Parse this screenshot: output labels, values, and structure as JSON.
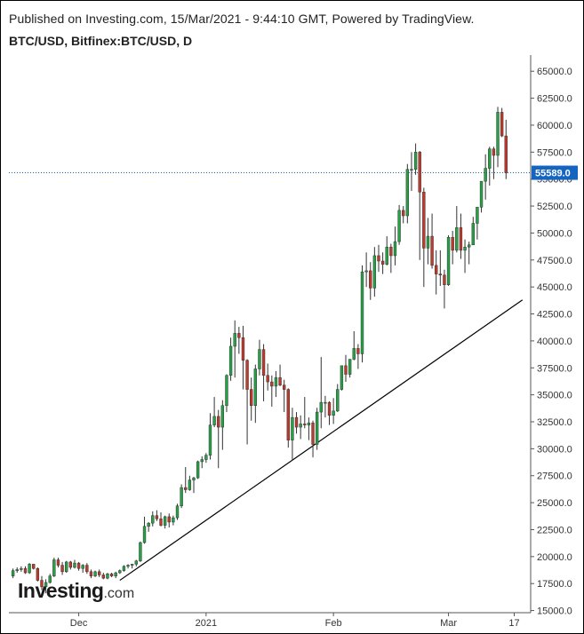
{
  "header": {
    "published": "Published on Investing.com, 15/Mar/2021 - 9:44:10 GMT, Powered by TradingView.",
    "symbol": "BTC/USD, Bitfinex:BTC/USD, D"
  },
  "logo": {
    "name": "Investing",
    "suffix": ".com"
  },
  "chart_data": {
    "type": "candlestick",
    "title": "BTC/USD, Bitfinex:BTC/USD, D",
    "ylim": [
      14800,
      66500
    ],
    "y_ticks": [
      15000,
      17500,
      20000,
      22500,
      25000,
      27500,
      30000,
      32500,
      35000,
      37500,
      40000,
      42500,
      45000,
      47500,
      50000,
      52500,
      55000,
      57500,
      60000,
      62500,
      65000
    ],
    "y_tick_labels": [
      "15000.0",
      "17500.0",
      "20000.0",
      "22500.0",
      "25000.0",
      "27500.0",
      "30000.0",
      "32500.0",
      "35000.0",
      "37500.0",
      "40000.0",
      "42500.0",
      "45000.0",
      "47500.0",
      "50000.0",
      "52500.0",
      "55000.0",
      "57500.0",
      "60000.0",
      "62500.0",
      "65000.0"
    ],
    "x_range": [
      "2020-11-14",
      "2021-03-21"
    ],
    "x_ticks": [
      {
        "date": "2020-12-01",
        "label": "Dec"
      },
      {
        "date": "2021-01-01",
        "label": "2021"
      },
      {
        "date": "2021-02-01",
        "label": "Feb"
      },
      {
        "date": "2021-03-01",
        "label": "Mar"
      },
      {
        "date": "2021-03-17",
        "label": "17"
      }
    ],
    "last_price": 55589.0,
    "last_price_label": "55589.0",
    "colors": {
      "up": "#26a246",
      "down": "#c0392b",
      "last_tag": "#1565c0",
      "trendline": "#000000"
    },
    "trendline": {
      "start": {
        "date": "2020-12-11",
        "price": 17800
      },
      "end": {
        "date": "2021-03-19",
        "price": 43800
      }
    },
    "candles": [
      {
        "date": "2020-11-15",
        "open": 18200,
        "high": 18900,
        "low": 18000,
        "close": 18700
      },
      {
        "date": "2020-11-16",
        "open": 18700,
        "high": 19000,
        "low": 18500,
        "close": 18800
      },
      {
        "date": "2020-11-17",
        "open": 18800,
        "high": 19100,
        "low": 18600,
        "close": 18900
      },
      {
        "date": "2020-11-18",
        "open": 18900,
        "high": 19100,
        "low": 18400,
        "close": 18500
      },
      {
        "date": "2020-11-19",
        "open": 18500,
        "high": 19400,
        "low": 18400,
        "close": 19300
      },
      {
        "date": "2020-11-20",
        "open": 19300,
        "high": 19300,
        "low": 18800,
        "close": 18900
      },
      {
        "date": "2020-11-21",
        "open": 18900,
        "high": 19000,
        "low": 17700,
        "close": 17800
      },
      {
        "date": "2020-11-22",
        "open": 17800,
        "high": 18200,
        "low": 16900,
        "close": 17200
      },
      {
        "date": "2020-11-23",
        "open": 17200,
        "high": 17900,
        "low": 16600,
        "close": 17600
      },
      {
        "date": "2020-11-24",
        "open": 17600,
        "high": 18400,
        "low": 17500,
        "close": 18200
      },
      {
        "date": "2020-11-25",
        "open": 18200,
        "high": 19900,
        "low": 18100,
        "close": 19700
      },
      {
        "date": "2020-11-26",
        "open": 19700,
        "high": 19900,
        "low": 19000,
        "close": 19200
      },
      {
        "date": "2020-11-27",
        "open": 19200,
        "high": 19500,
        "low": 18300,
        "close": 18600
      },
      {
        "date": "2020-11-28",
        "open": 18600,
        "high": 19600,
        "low": 18500,
        "close": 19500
      },
      {
        "date": "2020-11-29",
        "open": 19500,
        "high": 19600,
        "low": 18800,
        "close": 19000
      },
      {
        "date": "2020-11-30",
        "open": 19000,
        "high": 19700,
        "low": 18900,
        "close": 19400
      },
      {
        "date": "2020-12-01",
        "open": 19400,
        "high": 19500,
        "low": 18700,
        "close": 18900
      },
      {
        "date": "2020-12-02",
        "open": 18900,
        "high": 19300,
        "low": 18500,
        "close": 19200
      },
      {
        "date": "2020-12-03",
        "open": 19200,
        "high": 19400,
        "low": 18400,
        "close": 18600
      },
      {
        "date": "2020-12-04",
        "open": 18600,
        "high": 18800,
        "low": 18000,
        "close": 18200
      },
      {
        "date": "2020-12-05",
        "open": 18200,
        "high": 18700,
        "low": 18100,
        "close": 18600
      },
      {
        "date": "2020-12-06",
        "open": 18600,
        "high": 18800,
        "low": 18100,
        "close": 18300
      },
      {
        "date": "2020-12-07",
        "open": 18300,
        "high": 18500,
        "low": 17900,
        "close": 18000
      },
      {
        "date": "2020-12-08",
        "open": 18000,
        "high": 18500,
        "low": 17900,
        "close": 18400
      },
      {
        "date": "2020-12-09",
        "open": 18400,
        "high": 18500,
        "low": 18100,
        "close": 18200
      },
      {
        "date": "2020-12-10",
        "open": 18200,
        "high": 18600,
        "low": 18000,
        "close": 18500
      },
      {
        "date": "2020-12-11",
        "open": 18500,
        "high": 18800,
        "low": 18400,
        "close": 18700
      },
      {
        "date": "2020-12-12",
        "open": 18700,
        "high": 19200,
        "low": 18600,
        "close": 19100
      },
      {
        "date": "2020-12-13",
        "open": 19100,
        "high": 19300,
        "low": 18900,
        "close": 19200
      },
      {
        "date": "2020-12-14",
        "open": 19200,
        "high": 19300,
        "low": 18900,
        "close": 19300
      },
      {
        "date": "2020-12-15",
        "open": 19300,
        "high": 19700,
        "low": 19100,
        "close": 19600
      },
      {
        "date": "2020-12-16",
        "open": 19600,
        "high": 21400,
        "low": 19500,
        "close": 21300
      },
      {
        "date": "2020-12-17",
        "open": 21300,
        "high": 23700,
        "low": 21200,
        "close": 22800
      },
      {
        "date": "2020-12-18",
        "open": 22800,
        "high": 23200,
        "low": 22300,
        "close": 23100
      },
      {
        "date": "2020-12-19",
        "open": 23100,
        "high": 24200,
        "low": 22800,
        "close": 23800
      },
      {
        "date": "2020-12-20",
        "open": 23800,
        "high": 24300,
        "low": 23300,
        "close": 23500
      },
      {
        "date": "2020-12-21",
        "open": 23500,
        "high": 24100,
        "low": 22800,
        "close": 22900
      },
      {
        "date": "2020-12-22",
        "open": 22900,
        "high": 23800,
        "low": 22600,
        "close": 23700
      },
      {
        "date": "2020-12-23",
        "open": 23700,
        "high": 24000,
        "low": 22700,
        "close": 23200
      },
      {
        "date": "2020-12-24",
        "open": 23200,
        "high": 23800,
        "low": 22900,
        "close": 23600
      },
      {
        "date": "2020-12-25",
        "open": 23600,
        "high": 24900,
        "low": 23400,
        "close": 24700
      },
      {
        "date": "2020-12-26",
        "open": 24700,
        "high": 26700,
        "low": 24500,
        "close": 26400
      },
      {
        "date": "2020-12-27",
        "open": 26400,
        "high": 28300,
        "low": 25900,
        "close": 26200
      },
      {
        "date": "2020-12-28",
        "open": 26200,
        "high": 27500,
        "low": 26100,
        "close": 27100
      },
      {
        "date": "2020-12-29",
        "open": 27100,
        "high": 27400,
        "low": 25900,
        "close": 27300
      },
      {
        "date": "2020-12-30",
        "open": 27300,
        "high": 28900,
        "low": 27200,
        "close": 28800
      },
      {
        "date": "2020-12-31",
        "open": 28800,
        "high": 29300,
        "low": 28200,
        "close": 29000
      },
      {
        "date": "2021-01-01",
        "open": 29000,
        "high": 29600,
        "low": 28700,
        "close": 29400
      },
      {
        "date": "2021-01-02",
        "open": 29400,
        "high": 33300,
        "low": 29000,
        "close": 32200
      },
      {
        "date": "2021-01-03",
        "open": 32200,
        "high": 34800,
        "low": 32000,
        "close": 33000
      },
      {
        "date": "2021-01-04",
        "open": 33000,
        "high": 33600,
        "low": 28200,
        "close": 32000
      },
      {
        "date": "2021-01-05",
        "open": 32000,
        "high": 34500,
        "low": 29900,
        "close": 34000
      },
      {
        "date": "2021-01-06",
        "open": 34000,
        "high": 36900,
        "low": 33400,
        "close": 36800
      },
      {
        "date": "2021-01-07",
        "open": 36800,
        "high": 40300,
        "low": 36300,
        "close": 39500
      },
      {
        "date": "2021-01-08",
        "open": 39500,
        "high": 41900,
        "low": 36600,
        "close": 40700
      },
      {
        "date": "2021-01-09",
        "open": 40700,
        "high": 41300,
        "low": 38800,
        "close": 40300
      },
      {
        "date": "2021-01-10",
        "open": 40300,
        "high": 41400,
        "low": 35500,
        "close": 38200
      },
      {
        "date": "2021-01-11",
        "open": 38200,
        "high": 38300,
        "low": 30400,
        "close": 35500
      },
      {
        "date": "2021-01-12",
        "open": 35500,
        "high": 36600,
        "low": 32600,
        "close": 34000
      },
      {
        "date": "2021-01-13",
        "open": 34000,
        "high": 37800,
        "low": 32400,
        "close": 37400
      },
      {
        "date": "2021-01-14",
        "open": 37400,
        "high": 40100,
        "low": 36800,
        "close": 39200
      },
      {
        "date": "2021-01-15",
        "open": 39200,
        "high": 39700,
        "low": 34400,
        "close": 36800
      },
      {
        "date": "2021-01-16",
        "open": 36800,
        "high": 37900,
        "low": 35400,
        "close": 36200
      },
      {
        "date": "2021-01-17",
        "open": 36200,
        "high": 36800,
        "low": 33900,
        "close": 35800
      },
      {
        "date": "2021-01-18",
        "open": 35800,
        "high": 37200,
        "low": 34800,
        "close": 36600
      },
      {
        "date": "2021-01-19",
        "open": 36600,
        "high": 37800,
        "low": 35800,
        "close": 35900
      },
      {
        "date": "2021-01-20",
        "open": 35900,
        "high": 36400,
        "low": 33400,
        "close": 35500
      },
      {
        "date": "2021-01-21",
        "open": 35500,
        "high": 35600,
        "low": 30100,
        "close": 30800
      },
      {
        "date": "2021-01-22",
        "open": 30800,
        "high": 33800,
        "low": 28900,
        "close": 32900
      },
      {
        "date": "2021-01-23",
        "open": 32900,
        "high": 33400,
        "low": 31400,
        "close": 32000
      },
      {
        "date": "2021-01-24",
        "open": 32000,
        "high": 33100,
        "low": 30900,
        "close": 32300
      },
      {
        "date": "2021-01-25",
        "open": 32300,
        "high": 34800,
        "low": 31900,
        "close": 32200
      },
      {
        "date": "2021-01-26",
        "open": 32200,
        "high": 32900,
        "low": 30800,
        "close": 32400
      },
      {
        "date": "2021-01-27",
        "open": 32400,
        "high": 32600,
        "low": 29200,
        "close": 30400
      },
      {
        "date": "2021-01-28",
        "open": 30400,
        "high": 33800,
        "low": 29900,
        "close": 33400
      },
      {
        "date": "2021-01-29",
        "open": 33400,
        "high": 38500,
        "low": 31900,
        "close": 34300
      },
      {
        "date": "2021-01-30",
        "open": 34300,
        "high": 34900,
        "low": 32900,
        "close": 34300
      },
      {
        "date": "2021-01-31",
        "open": 34300,
        "high": 34400,
        "low": 32200,
        "close": 33100
      },
      {
        "date": "2021-02-01",
        "open": 33100,
        "high": 34700,
        "low": 32300,
        "close": 33500
      },
      {
        "date": "2021-02-02",
        "open": 33500,
        "high": 36000,
        "low": 33400,
        "close": 35500
      },
      {
        "date": "2021-02-03",
        "open": 35500,
        "high": 37700,
        "low": 35400,
        "close": 37700
      },
      {
        "date": "2021-02-04",
        "open": 37700,
        "high": 38700,
        "low": 36200,
        "close": 36900
      },
      {
        "date": "2021-02-05",
        "open": 36900,
        "high": 38300,
        "low": 36600,
        "close": 38300
      },
      {
        "date": "2021-02-06",
        "open": 38300,
        "high": 40900,
        "low": 38200,
        "close": 39300
      },
      {
        "date": "2021-02-07",
        "open": 39300,
        "high": 39700,
        "low": 37400,
        "close": 38800
      },
      {
        "date": "2021-02-08",
        "open": 38800,
        "high": 47000,
        "low": 38000,
        "close": 46400
      },
      {
        "date": "2021-02-09",
        "open": 46400,
        "high": 48200,
        "low": 45000,
        "close": 46500
      },
      {
        "date": "2021-02-10",
        "open": 46500,
        "high": 47300,
        "low": 43800,
        "close": 44900
      },
      {
        "date": "2021-02-11",
        "open": 44900,
        "high": 48700,
        "low": 44100,
        "close": 47900
      },
      {
        "date": "2021-02-12",
        "open": 47900,
        "high": 48900,
        "low": 46400,
        "close": 47400
      },
      {
        "date": "2021-02-13",
        "open": 47400,
        "high": 48200,
        "low": 46200,
        "close": 47100
      },
      {
        "date": "2021-02-14",
        "open": 47100,
        "high": 49700,
        "low": 47000,
        "close": 48700
      },
      {
        "date": "2021-02-15",
        "open": 48700,
        "high": 49000,
        "low": 46300,
        "close": 47900
      },
      {
        "date": "2021-02-16",
        "open": 47900,
        "high": 50600,
        "low": 47000,
        "close": 49200
      },
      {
        "date": "2021-02-17",
        "open": 49200,
        "high": 52600,
        "low": 48900,
        "close": 52100
      },
      {
        "date": "2021-02-18",
        "open": 52100,
        "high": 52500,
        "low": 50900,
        "close": 51600
      },
      {
        "date": "2021-02-19",
        "open": 51600,
        "high": 56400,
        "low": 50900,
        "close": 55900
      },
      {
        "date": "2021-02-20",
        "open": 55900,
        "high": 57500,
        "low": 53900,
        "close": 55900
      },
      {
        "date": "2021-02-21",
        "open": 55900,
        "high": 58300,
        "low": 55400,
        "close": 57500
      },
      {
        "date": "2021-02-22",
        "open": 57500,
        "high": 57600,
        "low": 47500,
        "close": 53800
      },
      {
        "date": "2021-02-23",
        "open": 53800,
        "high": 54200,
        "low": 45000,
        "close": 48600
      },
      {
        "date": "2021-02-24",
        "open": 48600,
        "high": 51400,
        "low": 47100,
        "close": 49700
      },
      {
        "date": "2021-02-25",
        "open": 49700,
        "high": 51800,
        "low": 46700,
        "close": 47000
      },
      {
        "date": "2021-02-26",
        "open": 47000,
        "high": 48400,
        "low": 44300,
        "close": 46200
      },
      {
        "date": "2021-02-27",
        "open": 46200,
        "high": 48400,
        "low": 45100,
        "close": 46100
      },
      {
        "date": "2021-02-28",
        "open": 46100,
        "high": 46600,
        "low": 43000,
        "close": 45200
      },
      {
        "date": "2021-03-01",
        "open": 45200,
        "high": 49800,
        "low": 45100,
        "close": 49600
      },
      {
        "date": "2021-03-02",
        "open": 49600,
        "high": 50200,
        "low": 47100,
        "close": 48400
      },
      {
        "date": "2021-03-03",
        "open": 48400,
        "high": 52500,
        "low": 48200,
        "close": 50500
      },
      {
        "date": "2021-03-04",
        "open": 50500,
        "high": 51800,
        "low": 47600,
        "close": 48400
      },
      {
        "date": "2021-03-05",
        "open": 48400,
        "high": 49400,
        "low": 46300,
        "close": 48700
      },
      {
        "date": "2021-03-06",
        "open": 48700,
        "high": 49200,
        "low": 47100,
        "close": 48900
      },
      {
        "date": "2021-03-07",
        "open": 48900,
        "high": 51500,
        "low": 48900,
        "close": 50900
      },
      {
        "date": "2021-03-08",
        "open": 50900,
        "high": 52400,
        "low": 49400,
        "close": 52400
      },
      {
        "date": "2021-03-09",
        "open": 52400,
        "high": 54800,
        "low": 51900,
        "close": 54800
      },
      {
        "date": "2021-03-10",
        "open": 54800,
        "high": 57300,
        "low": 53100,
        "close": 56000
      },
      {
        "date": "2021-03-11",
        "open": 56000,
        "high": 58000,
        "low": 54400,
        "close": 57800
      },
      {
        "date": "2021-03-12",
        "open": 57800,
        "high": 58000,
        "low": 55000,
        "close": 57200
      },
      {
        "date": "2021-03-13",
        "open": 57200,
        "high": 61700,
        "low": 56100,
        "close": 61200
      },
      {
        "date": "2021-03-14",
        "open": 61200,
        "high": 61600,
        "low": 58900,
        "close": 59000
      },
      {
        "date": "2021-03-15",
        "open": 59000,
        "high": 60500,
        "low": 55000,
        "close": 55589
      }
    ]
  }
}
